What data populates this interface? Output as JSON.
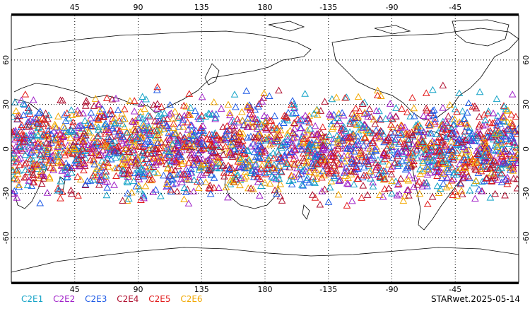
{
  "map": {
    "lon_ticks": [
      "45",
      "90",
      "135",
      "180",
      "-135",
      "-90",
      "-45"
    ],
    "lat_ticks": [
      "60",
      "30",
      "0",
      "-30",
      "-60"
    ],
    "lon_range": [
      0,
      360
    ],
    "lat_range": [
      -90,
      90
    ],
    "grid": "dotted",
    "coastline_color": "#000000",
    "marker_shape": "triangle-outline",
    "observation_lat_band": [
      -45,
      45
    ]
  },
  "legend": [
    {
      "label": "C2E1",
      "color": "#14a3c7"
    },
    {
      "label": "C2E2",
      "color": "#a020c8"
    },
    {
      "label": "C2E3",
      "color": "#1e5ae6"
    },
    {
      "label": "C2E4",
      "color": "#b01030"
    },
    {
      "label": "C2E5",
      "color": "#e21b1b"
    },
    {
      "label": "C2E6",
      "color": "#f2a800"
    }
  ],
  "stamp": "STARwet.2025-05-14"
}
